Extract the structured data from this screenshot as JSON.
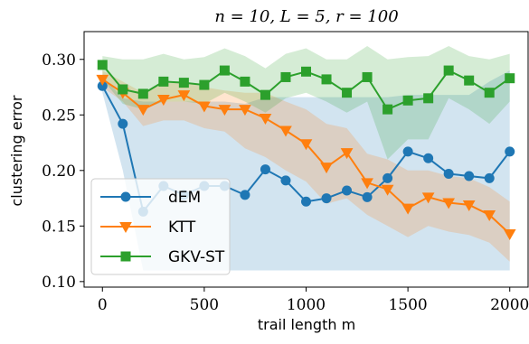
{
  "chart_data": {
    "type": "line",
    "title": "n = 10, L = 5, r = 100",
    "xlabel": "trail length m",
    "ylabel": "clustering error",
    "xlim": [
      -90,
      2090
    ],
    "ylim": [
      0.095,
      0.325
    ],
    "xticks": [
      0,
      500,
      1000,
      1500,
      2000
    ],
    "xtick_labels": [
      "0",
      "500",
      "1000",
      "1500",
      "2000"
    ],
    "yticks": [
      0.1,
      0.15,
      0.2,
      0.25,
      0.3
    ],
    "ytick_labels": [
      "0.10",
      "0.15",
      "0.20",
      "0.25",
      "0.30"
    ],
    "grid": false,
    "legend_position": "lower-left",
    "x": [
      0,
      100,
      200,
      300,
      400,
      500,
      600,
      700,
      800,
      900,
      1000,
      1100,
      1200,
      1300,
      1400,
      1500,
      1600,
      1700,
      1800,
      1900,
      2000
    ],
    "series": [
      {
        "name": "dEM",
        "color": "#1f77b4",
        "marker": "circle",
        "values": [
          0.276,
          0.242,
          0.163,
          0.186,
          0.178,
          0.186,
          0.186,
          0.178,
          0.201,
          0.191,
          0.172,
          0.175,
          0.182,
          0.176,
          0.193,
          0.217,
          0.211,
          0.197,
          0.195,
          0.193,
          0.217
        ],
        "lower": [
          0.27,
          0.2,
          0.11,
          0.11,
          0.11,
          0.11,
          0.11,
          0.11,
          0.11,
          0.11,
          0.11,
          0.11,
          0.11,
          0.11,
          0.11,
          0.11,
          0.11,
          0.11,
          0.11,
          0.11,
          0.11
        ],
        "upper": [
          0.285,
          0.265,
          0.262,
          0.262,
          0.262,
          0.262,
          0.262,
          0.26,
          0.266,
          0.266,
          0.266,
          0.266,
          0.266,
          0.266,
          0.266,
          0.268,
          0.268,
          0.268,
          0.268,
          0.28,
          0.29
        ]
      },
      {
        "name": "KTT",
        "color": "#ff7f0e",
        "marker": "triangle-down",
        "values": [
          0.282,
          0.27,
          0.255,
          0.264,
          0.268,
          0.258,
          0.255,
          0.255,
          0.247,
          0.236,
          0.224,
          0.203,
          0.216,
          0.189,
          0.183,
          0.166,
          0.176,
          0.171,
          0.169,
          0.16,
          0.143
        ],
        "lower": [
          0.275,
          0.262,
          0.24,
          0.245,
          0.245,
          0.238,
          0.235,
          0.22,
          0.212,
          0.2,
          0.19,
          0.17,
          0.175,
          0.16,
          0.15,
          0.14,
          0.15,
          0.145,
          0.142,
          0.135,
          0.118
        ],
        "upper": [
          0.29,
          0.28,
          0.27,
          0.278,
          0.28,
          0.275,
          0.272,
          0.27,
          0.27,
          0.262,
          0.255,
          0.242,
          0.238,
          0.215,
          0.21,
          0.2,
          0.2,
          0.195,
          0.193,
          0.185,
          0.172
        ]
      },
      {
        "name": "GKV-ST",
        "color": "#2ca02c",
        "marker": "square",
        "values": [
          0.295,
          0.273,
          0.269,
          0.28,
          0.279,
          0.277,
          0.29,
          0.28,
          0.268,
          0.284,
          0.289,
          0.282,
          0.27,
          0.284,
          0.255,
          0.263,
          0.265,
          0.29,
          0.281,
          0.27,
          0.283
        ],
        "lower": [
          0.282,
          0.26,
          0.255,
          0.262,
          0.262,
          0.26,
          0.27,
          0.262,
          0.252,
          0.265,
          0.27,
          0.262,
          0.252,
          0.262,
          0.21,
          0.228,
          0.228,
          0.265,
          0.255,
          0.242,
          0.262
        ],
        "upper": [
          0.303,
          0.3,
          0.3,
          0.305,
          0.3,
          0.302,
          0.31,
          0.303,
          0.292,
          0.305,
          0.31,
          0.3,
          0.3,
          0.312,
          0.3,
          0.302,
          0.303,
          0.312,
          0.303,
          0.3,
          0.305
        ]
      }
    ]
  }
}
